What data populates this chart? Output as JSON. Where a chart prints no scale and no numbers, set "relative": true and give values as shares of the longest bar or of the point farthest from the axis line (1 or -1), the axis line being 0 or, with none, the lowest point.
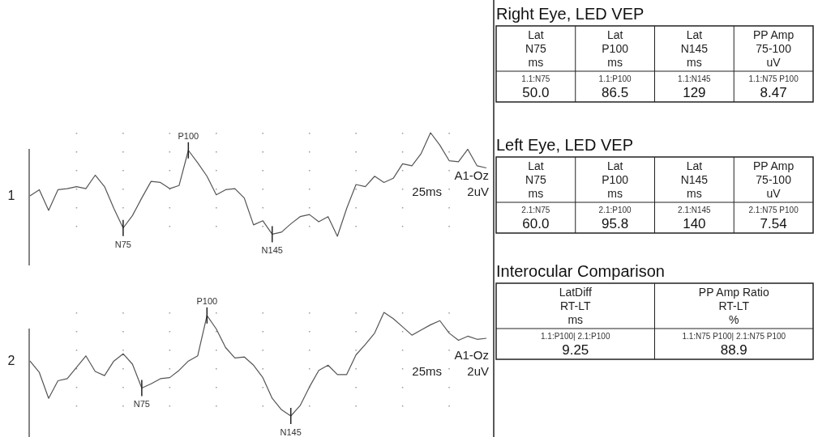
{
  "chart_data": [
    {
      "type": "line",
      "relative": true,
      "color": "#555555",
      "grid": "x",
      "categories": [
        null,
        null,
        null,
        null,
        null,
        null,
        null,
        null,
        null,
        null,
        null,
        null,
        null,
        null,
        null,
        null,
        null,
        null,
        null,
        null,
        null,
        null,
        null,
        null,
        null,
        null,
        null,
        null,
        null,
        null,
        null,
        null,
        null,
        null,
        null,
        null,
        null,
        null,
        null,
        null,
        null,
        null,
        null,
        null,
        null,
        null,
        null,
        null,
        null,
        null
      ],
      "values": [
        0.39,
        0.45,
        0.25,
        0.45,
        0.46,
        0.48,
        0.46,
        0.59,
        0.48,
        0.27,
        0.08,
        0.2,
        0.37,
        0.53,
        0.52,
        0.46,
        0.49,
        0.83,
        0.71,
        0.58,
        0.4,
        0.45,
        0.46,
        0.37,
        0.11,
        0.15,
        0.02,
        0.04,
        0.12,
        0.19,
        0.21,
        0.14,
        0.19,
        0.0,
        0.27,
        0.5,
        0.48,
        0.58,
        0.52,
        0.56,
        0.7,
        0.68,
        0.8,
        1.0,
        0.88,
        0.73,
        0.72,
        0.84,
        0.68,
        0.66
      ],
      "annotations": [
        {
          "text": "N75",
          "y": 0.08
        },
        {
          "text": "P100",
          "y": 0.83
        },
        {
          "text": "N145",
          "y": 0.02
        },
        "1",
        "A1-Oz",
        "25ms",
        "2uV"
      ]
    },
    {
      "type": "line",
      "relative": true,
      "color": "#555555",
      "grid": "x",
      "categories": [
        null,
        null,
        null,
        null,
        null,
        null,
        null,
        null,
        null,
        null,
        null,
        null,
        null,
        null,
        null,
        null,
        null,
        null,
        null,
        null,
        null,
        null,
        null,
        null,
        null,
        null,
        null,
        null,
        null,
        null,
        null,
        null,
        null,
        null,
        null,
        null,
        null,
        null,
        null,
        null,
        null,
        null,
        null,
        null,
        null,
        null,
        null,
        null,
        null,
        null
      ],
      "values": [
        0.53,
        0.42,
        0.17,
        0.34,
        0.36,
        0.47,
        0.58,
        0.43,
        0.39,
        0.53,
        0.6,
        0.5,
        0.27,
        0.31,
        0.36,
        0.37,
        0.44,
        0.53,
        0.58,
        0.97,
        0.84,
        0.66,
        0.56,
        0.57,
        0.49,
        0.37,
        0.17,
        0.06,
        0.0,
        0.1,
        0.28,
        0.44,
        0.49,
        0.4,
        0.4,
        0.59,
        0.69,
        0.8,
        1.0,
        0.94,
        0.86,
        0.78,
        0.83,
        0.88,
        0.92,
        0.8,
        0.73,
        0.77,
        0.74,
        0.75
      ],
      "annotations": [
        {
          "text": "N75",
          "y": 0.27
        },
        {
          "text": "P100",
          "y": 0.97
        },
        {
          "text": "N145",
          "y": 0.0
        },
        "2",
        "A1-Oz",
        "25ms",
        "2uV"
      ]
    },
    {
      "type": "other",
      "title": "Right Eye, LED VEP",
      "annotations": [
        "Lat\nN75\nms",
        "Lat\nP100\nms",
        "Lat\nN145\nms",
        "PP Amp\n75-100\nuV",
        "1.1:N75\n50.0",
        "1.1:P100\n86.5",
        "1.1:N145\n129",
        "1.1:N75 P100\n8.47"
      ]
    },
    {
      "type": "other",
      "title": "Left Eye, LED VEP",
      "annotations": [
        "Lat\nN75\nms",
        "Lat\nP100\nms",
        "Lat\nN145\nms",
        "PP Amp\n75-100\nuV",
        "2.1:N75\n60.0",
        "2.1:P100\n95.8",
        "2.1:N145\n140",
        "2.1:N75 P100\n7.54"
      ]
    },
    {
      "type": "other",
      "title": "Interocular Comparison",
      "annotations": [
        "LatDiff\nRT-LT\nms",
        "PP Amp Ratio\nRT-LT\n%",
        "1.1:P100| 2.1:P100\n9.25",
        "1.1:N75 P100| 2.1:N75 P100\n88.9"
      ]
    }
  ]
}
